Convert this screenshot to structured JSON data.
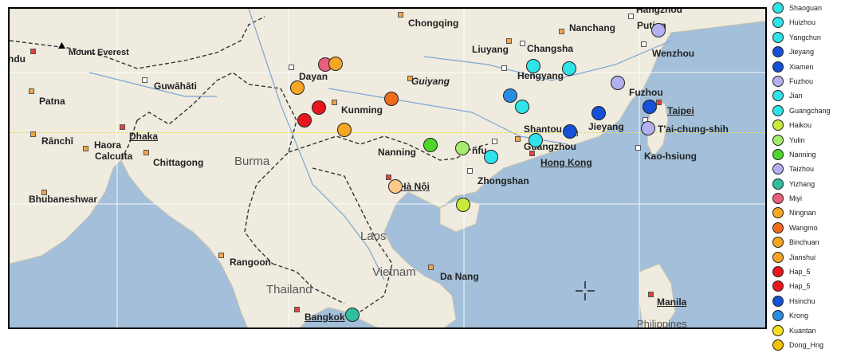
{
  "map": {
    "regions": [
      {
        "id": "burma",
        "text": "Burma"
      },
      {
        "id": "laos",
        "text": "Laos"
      },
      {
        "id": "vietnam",
        "text": "Vietnam"
      },
      {
        "id": "thailand",
        "text": "Thailand"
      },
      {
        "id": "philippines",
        "text": "Philippines"
      }
    ],
    "cities": [
      {
        "id": "hangzhou",
        "text": "Hangzhou"
      },
      {
        "id": "chongqing",
        "text": "Chongqing"
      },
      {
        "id": "nanchang",
        "text": "Nanchang"
      },
      {
        "id": "liuyang",
        "text": "Liuyang"
      },
      {
        "id": "changsha",
        "text": "Changsha"
      },
      {
        "id": "putian",
        "text": "Putian"
      },
      {
        "id": "wenzhou",
        "text": "Wenzhou"
      },
      {
        "id": "mount_everest",
        "text": "Mount Everest"
      },
      {
        "id": "dayan",
        "text": "Dayan"
      },
      {
        "id": "hengyang",
        "text": "Hengyang"
      },
      {
        "id": "guwahati",
        "text": "Guwāhāti"
      },
      {
        "id": "guiyang",
        "text": "Guiyang"
      },
      {
        "id": "fuzhou",
        "text": "Fuzhou"
      },
      {
        "id": "patna",
        "text": "Patna"
      },
      {
        "id": "kunming",
        "text": "Kunming"
      },
      {
        "id": "taipei",
        "text": "Taipei"
      },
      {
        "id": "dhaka",
        "text": "Dhaka"
      },
      {
        "id": "shantou",
        "text": "Shantou"
      },
      {
        "id": "jieyang",
        "text": "Jieyang"
      },
      {
        "id": "taichung",
        "text": "T'ai-chung-shih"
      },
      {
        "id": "ranchi",
        "text": "Rānchī"
      },
      {
        "id": "haora",
        "text": "Haora"
      },
      {
        "id": "calcutta",
        "text": "Calcutta"
      },
      {
        "id": "nanning",
        "text": "Nanning"
      },
      {
        "id": "nfu",
        "text": "nfu"
      },
      {
        "id": "guangzhou",
        "text": "Guangzhou"
      },
      {
        "id": "chittagong",
        "text": "Chittagong"
      },
      {
        "id": "hongkong",
        "text": "Hong Kong"
      },
      {
        "id": "kaohsiung",
        "text": "Kao-hsiung"
      },
      {
        "id": "zhongshan",
        "text": "Zhongshan"
      },
      {
        "id": "hanoi",
        "text": "Hà Nội"
      },
      {
        "id": "bhubaneshwar",
        "text": "Bhubaneshwar"
      },
      {
        "id": "rangoon",
        "text": "Rangoon"
      },
      {
        "id": "danang",
        "text": "Da Nang"
      },
      {
        "id": "manila",
        "text": "Manila"
      },
      {
        "id": "bangkok",
        "text": "Bangkok"
      },
      {
        "id": "ndu",
        "text": "ndu"
      }
    ]
  },
  "legend": [
    {
      "label": "Shaoguan",
      "color": "#2fe3e8"
    },
    {
      "label": "Huizhou",
      "color": "#2fe3e8"
    },
    {
      "label": "Yangchun",
      "color": "#2fe3e8"
    },
    {
      "label": "Jieyang",
      "color": "#1550d6"
    },
    {
      "label": "Xiamen",
      "color": "#1550d6"
    },
    {
      "label": "Fuzhou",
      "color": "#b3b0f0"
    },
    {
      "label": "Jian",
      "color": "#2fe3e8"
    },
    {
      "label": "Guangchang",
      "color": "#2fe3e8"
    },
    {
      "label": "Haikou",
      "color": "#c7ea3c"
    },
    {
      "label": "Yulin",
      "color": "#a6ec6c"
    },
    {
      "label": "Nanning",
      "color": "#4ed62c"
    },
    {
      "label": "Taizhou",
      "color": "#b3b0f0"
    },
    {
      "label": "Yizhang",
      "color": "#2fbf9c"
    },
    {
      "label": "Miyi",
      "color": "#e8607c"
    },
    {
      "label": "Ningnan",
      "color": "#f5a623"
    },
    {
      "label": "Wangmo",
      "color": "#f06c1c"
    },
    {
      "label": "Binchuan",
      "color": "#f5a623"
    },
    {
      "label": "Jianshui",
      "color": "#f5a623"
    },
    {
      "label": "Hap_5",
      "color": "#e8161c"
    },
    {
      "label": "Hap_5",
      "color": "#e8161c"
    },
    {
      "label": "Hsinchu",
      "color": "#1550d6"
    },
    {
      "label": "Krong",
      "color": "#2a8ce0"
    },
    {
      "label": "Kuantan",
      "color": "#f5e020"
    },
    {
      "label": "Dong_Hng",
      "color": "#f5c000"
    }
  ],
  "points": [
    {
      "color": "#e8607c"
    },
    {
      "color": "#f5a623"
    },
    {
      "color": "#f5a623"
    },
    {
      "color": "#e8161c"
    },
    {
      "color": "#e8161c"
    },
    {
      "color": "#f06c1c"
    },
    {
      "color": "#f5a623"
    },
    {
      "color": "#2fe3e8"
    },
    {
      "color": "#2fe3e8"
    },
    {
      "color": "#2a8ce0"
    },
    {
      "color": "#2fe3e8"
    },
    {
      "color": "#b3b0f0"
    },
    {
      "color": "#1550d6"
    },
    {
      "color": "#1550d6"
    },
    {
      "color": "#b3b0f0"
    },
    {
      "color": "#1550d6"
    },
    {
      "color": "#b3b0f0"
    },
    {
      "color": "#2fe3e8"
    },
    {
      "color": "#2fe3e8"
    },
    {
      "color": "#4ed62c"
    },
    {
      "color": "#a6ec6c"
    },
    {
      "color": "#fdc987"
    },
    {
      "color": "#c7ea3c"
    },
    {
      "color": "#2fbf9c"
    }
  ]
}
